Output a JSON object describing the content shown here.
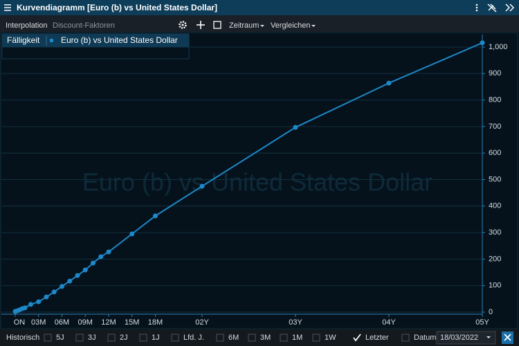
{
  "window": {
    "title": "Kurvendiagramm [Euro (b) vs United States Dollar]",
    "tabs": [
      "Interpolation",
      "Discount-Faktoren"
    ],
    "menus": [
      "Zeitraum",
      "Vergleichen"
    ]
  },
  "chart_data": {
    "type": "line",
    "legend_header": "Fälligkeit",
    "x": [
      0,
      0.27,
      0.53,
      0.9,
      1.25,
      2,
      3,
      4,
      5,
      6,
      7,
      8,
      9,
      10,
      11,
      12,
      15,
      18,
      24,
      36,
      48,
      60
    ],
    "series": [
      {
        "name": "Euro (b) vs United States Dollar",
        "color": "#1e88c8",
        "values": [
          2.6,
          5,
          8,
          13,
          16,
          29,
          39,
          57,
          76,
          97,
          117,
          138,
          159,
          185,
          209,
          227,
          295,
          363,
          475,
          697,
          864,
          1016
        ]
      }
    ],
    "xlim": [
      0,
      60
    ],
    "xticks": [
      {
        "value": 0,
        "label": "ON"
      },
      {
        "value": 3,
        "label": "03M"
      },
      {
        "value": 6,
        "label": "06M"
      },
      {
        "value": 9,
        "label": "09M"
      },
      {
        "value": 12,
        "label": "12M"
      },
      {
        "value": 15,
        "label": "15M"
      },
      {
        "value": 18,
        "label": "18M"
      },
      {
        "value": 24,
        "label": "02Y"
      },
      {
        "value": 36,
        "label": "03Y"
      },
      {
        "value": 48,
        "label": "04Y"
      },
      {
        "value": 60,
        "label": "05Y"
      }
    ],
    "ylim": [
      0,
      1000
    ],
    "yticks": [
      0,
      100,
      200,
      300,
      400,
      500,
      600,
      700,
      800,
      900,
      {
        "value": 1000,
        "label": "1,000"
      }
    ],
    "grid": true
  },
  "footer": {
    "label": "Historisch",
    "options": [
      {
        "label": "5J",
        "checked": false
      },
      {
        "label": "3J",
        "checked": false
      },
      {
        "label": "2J",
        "checked": false
      },
      {
        "label": "1J",
        "checked": false
      },
      {
        "label": "Lfd. J.",
        "checked": false
      },
      {
        "label": "6M",
        "checked": false
      },
      {
        "label": "3M",
        "checked": false
      },
      {
        "label": "1M",
        "checked": false
      },
      {
        "label": "1W",
        "checked": false
      },
      {
        "label": "Letzter",
        "checked": true
      },
      {
        "label": "Datum",
        "checked": false
      }
    ],
    "date": "18/03/2022"
  }
}
